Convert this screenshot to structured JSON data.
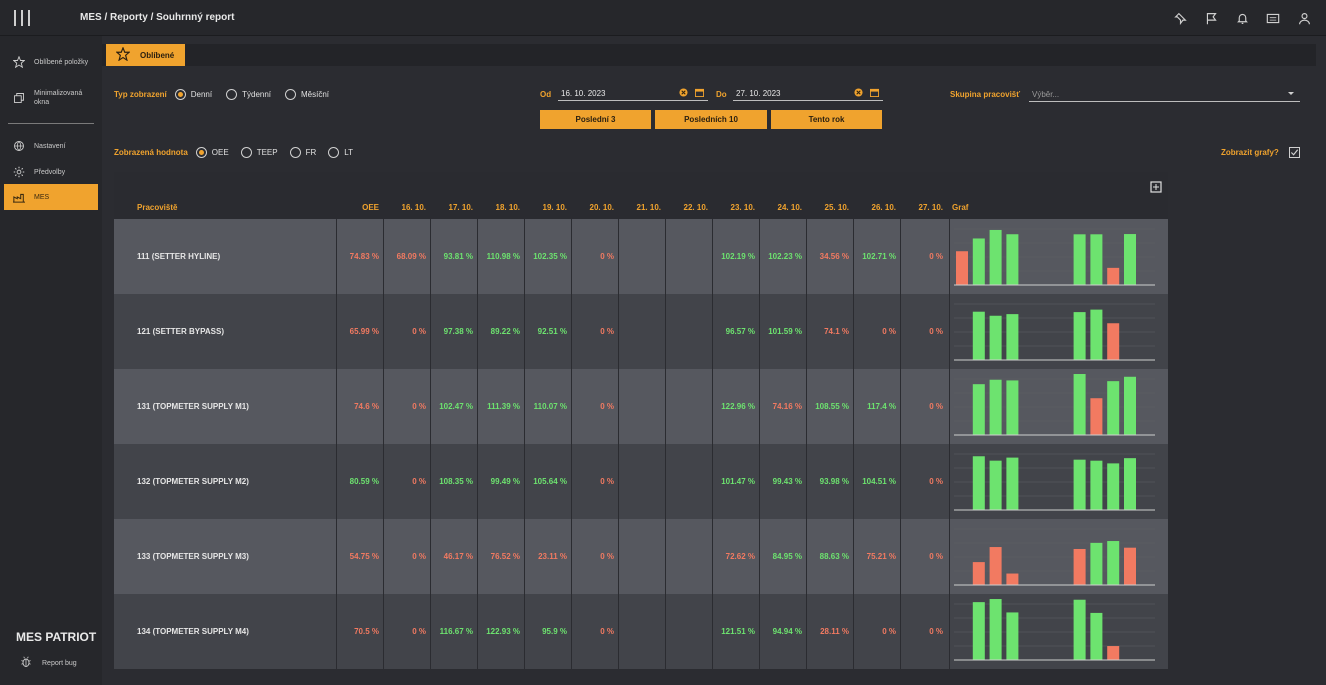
{
  "breadcrumb": "MES / Reporty / Souhrnný report",
  "colors": {
    "accent": "#f0a32e",
    "good": "#6de36f",
    "bad": "#f27a61"
  },
  "top_icons": [
    "pin-icon",
    "flag-icon",
    "bell-icon",
    "keyboard-icon",
    "user-icon"
  ],
  "sidebar": {
    "items": [
      {
        "label": "Oblíbené položky",
        "icon": "star-icon"
      },
      {
        "label": "Minimalizovaná okna",
        "icon": "windows-icon"
      },
      {
        "label": "Nastavení",
        "icon": "globe-icon"
      },
      {
        "label": "Předvolby",
        "icon": "gear-icon"
      },
      {
        "label": "MES",
        "icon": "factory-icon",
        "active": true
      }
    ],
    "brand": "MES PATRIOT",
    "report_bug": "Report bug"
  },
  "favorites": {
    "label": "Oblíbené"
  },
  "filters": {
    "view_type_label": "Typ zobrazení",
    "view_options": [
      "Denní",
      "Týdenní",
      "Měsíční"
    ],
    "view_selected": "Denní",
    "from_label": "Od",
    "from_date": "16. 10. 2023",
    "to_label": "Do",
    "to_date": "27. 10. 2023",
    "quick_buttons": [
      "Poslední 3",
      "Posledních 10",
      "Tento rok"
    ],
    "group_label": "Skupina pracovišť",
    "group_placeholder": "Výběr...",
    "value_label": "Zobrazená hodnota",
    "value_options": [
      "OEE",
      "TEEP",
      "FR",
      "LT"
    ],
    "value_selected": "OEE",
    "show_graphs_label": "Zobrazit grafy?",
    "show_graphs_checked": true
  },
  "table": {
    "headers": [
      "Pracoviště",
      "OEE",
      "16. 10.",
      "17. 10.",
      "18. 10.",
      "19. 10.",
      "20. 10.",
      "21. 10.",
      "22. 10.",
      "23. 10.",
      "24. 10.",
      "25. 10.",
      "26. 10.",
      "27. 10.",
      "Graf"
    ],
    "rows": [
      {
        "name": "111 (SETTER HYLINE)",
        "oee": "74.83 %",
        "cells": [
          "68.09 %",
          "93.81 %",
          "110.98 %",
          "102.35 %",
          "0 %",
          "",
          "",
          "102.19 %",
          "102.23 %",
          "34.56 %",
          "102.71 %",
          "0 %"
        ],
        "bars": [
          68.09,
          93.81,
          110.98,
          102.35,
          0,
          null,
          null,
          102.19,
          102.23,
          34.56,
          102.71,
          0
        ]
      },
      {
        "name": "121 (SETTER BYPASS)",
        "oee": "65.99 %",
        "cells": [
          "0 %",
          "97.38 %",
          "89.22 %",
          "92.51 %",
          "0 %",
          "",
          "",
          "96.57 %",
          "101.59 %",
          "74.1 %",
          "0 %",
          "0 %"
        ],
        "bars": [
          0,
          97.38,
          89.22,
          92.51,
          0,
          null,
          null,
          96.57,
          101.59,
          74.1,
          0,
          0
        ]
      },
      {
        "name": "131 (TOPMETER SUPPLY M1)",
        "oee": "74.6 %",
        "cells": [
          "0 %",
          "102.47 %",
          "111.39 %",
          "110.07 %",
          "0 %",
          "",
          "",
          "122.96 %",
          "74.16 %",
          "108.55 %",
          "117.4 %",
          "0 %"
        ],
        "bars": [
          0,
          102.47,
          111.39,
          110.07,
          0,
          null,
          null,
          122.96,
          74.16,
          108.55,
          117.4,
          0
        ]
      },
      {
        "name": "132 (TOPMETER SUPPLY M2)",
        "oee": "80.59 %",
        "cells": [
          "0 %",
          "108.35 %",
          "99.49 %",
          "105.64 %",
          "0 %",
          "",
          "",
          "101.47 %",
          "99.43 %",
          "93.98 %",
          "104.51 %",
          "0 %"
        ],
        "bars": [
          0,
          108.35,
          99.49,
          105.64,
          0,
          null,
          null,
          101.47,
          99.43,
          93.98,
          104.51,
          0
        ]
      },
      {
        "name": "133 (TOPMETER SUPPLY M3)",
        "oee": "54.75 %",
        "cells": [
          "0 %",
          "46.17 %",
          "76.52 %",
          "23.11 %",
          "0 %",
          "",
          "",
          "72.62 %",
          "84.95 %",
          "88.63 %",
          "75.21 %",
          "0 %"
        ],
        "bars": [
          0,
          46.17,
          76.52,
          23.11,
          0,
          null,
          null,
          72.62,
          84.95,
          88.63,
          75.21,
          0
        ]
      },
      {
        "name": "134 (TOPMETER SUPPLY M4)",
        "oee": "70.5 %",
        "cells": [
          "0 %",
          "116.67 %",
          "122.93 %",
          "95.9 %",
          "0 %",
          "",
          "",
          "121.51 %",
          "94.94 %",
          "28.11 %",
          "0 %",
          "0 %"
        ],
        "bars": [
          0,
          116.67,
          122.93,
          95.9,
          0,
          null,
          null,
          121.51,
          94.94,
          28.11,
          0,
          0
        ]
      }
    ]
  }
}
